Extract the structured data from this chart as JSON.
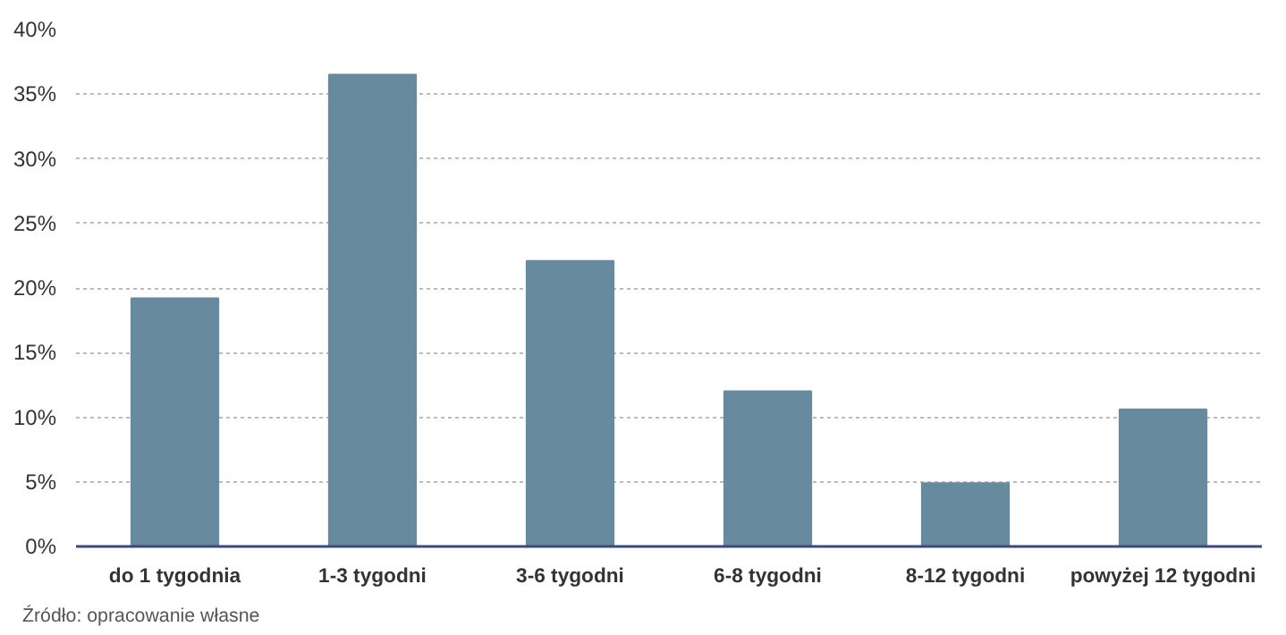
{
  "chart_data": {
    "type": "bar",
    "categories": [
      "do 1 tygodnia",
      "1-3 tygodni",
      "3-6 tygodni",
      "6-8 tygodni",
      "8-12 tygodni",
      "powyżej 12 tygodni"
    ],
    "values": [
      19.2,
      36.5,
      22.1,
      12.0,
      4.9,
      10.6
    ],
    "color": "#688a9e",
    "ylim": [
      0,
      40
    ],
    "yticks": [
      {
        "value": 0,
        "label": "0%"
      },
      {
        "value": 5,
        "label": "5%"
      },
      {
        "value": 10,
        "label": "10%"
      },
      {
        "value": 15,
        "label": "15%"
      },
      {
        "value": 20,
        "label": "20%"
      },
      {
        "value": 25,
        "label": "25%"
      },
      {
        "value": 30,
        "label": "30%"
      },
      {
        "value": 35,
        "label": "35%"
      },
      {
        "value": 40,
        "label": "40%"
      }
    ],
    "grid": "y",
    "annotations": [
      "Źródło: opracowanie własne"
    ]
  }
}
